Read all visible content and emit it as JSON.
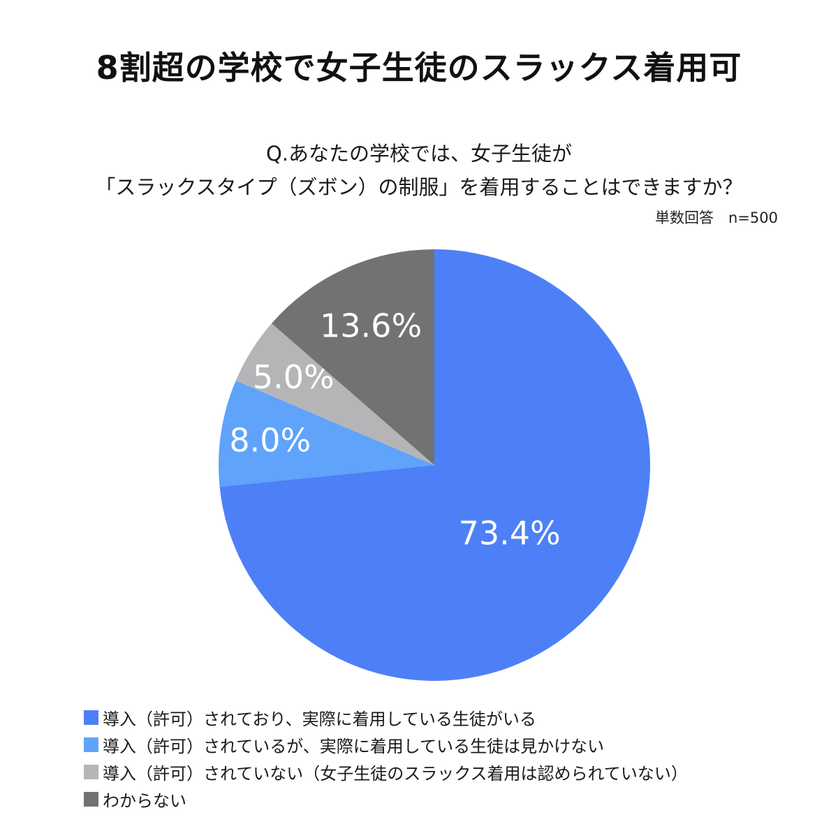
{
  "header": {
    "title": "8割超の学校で女子生徒のスラックス着用可"
  },
  "question": {
    "line1": "Q.あなたの学校では、女子生徒が",
    "line2": "「スラックスタイプ（ズボン）の制服」を着用することはできますか？",
    "sample_note": "単数回答　n=500"
  },
  "chart_data": {
    "type": "pie",
    "title": "",
    "start_angle_deg": 0,
    "direction": "clockwise",
    "labels": [
      "導入（許可）されており、実際に着用している生徒がいる",
      "導入（許可）されているが、実際に着用している生徒は見かけない",
      "導入（許可）されていない（女子生徒のスラックス着用は認められていない）",
      "わからない"
    ],
    "values": [
      73.4,
      8.0,
      5.0,
      13.6
    ],
    "value_labels": [
      "73.4%",
      "8.0%",
      "5.0%",
      "13.6%"
    ],
    "colors": [
      "#4d80f7",
      "#5fa3fb",
      "#b5b5b8",
      "#727174"
    ],
    "legend_position": "bottom-left"
  }
}
